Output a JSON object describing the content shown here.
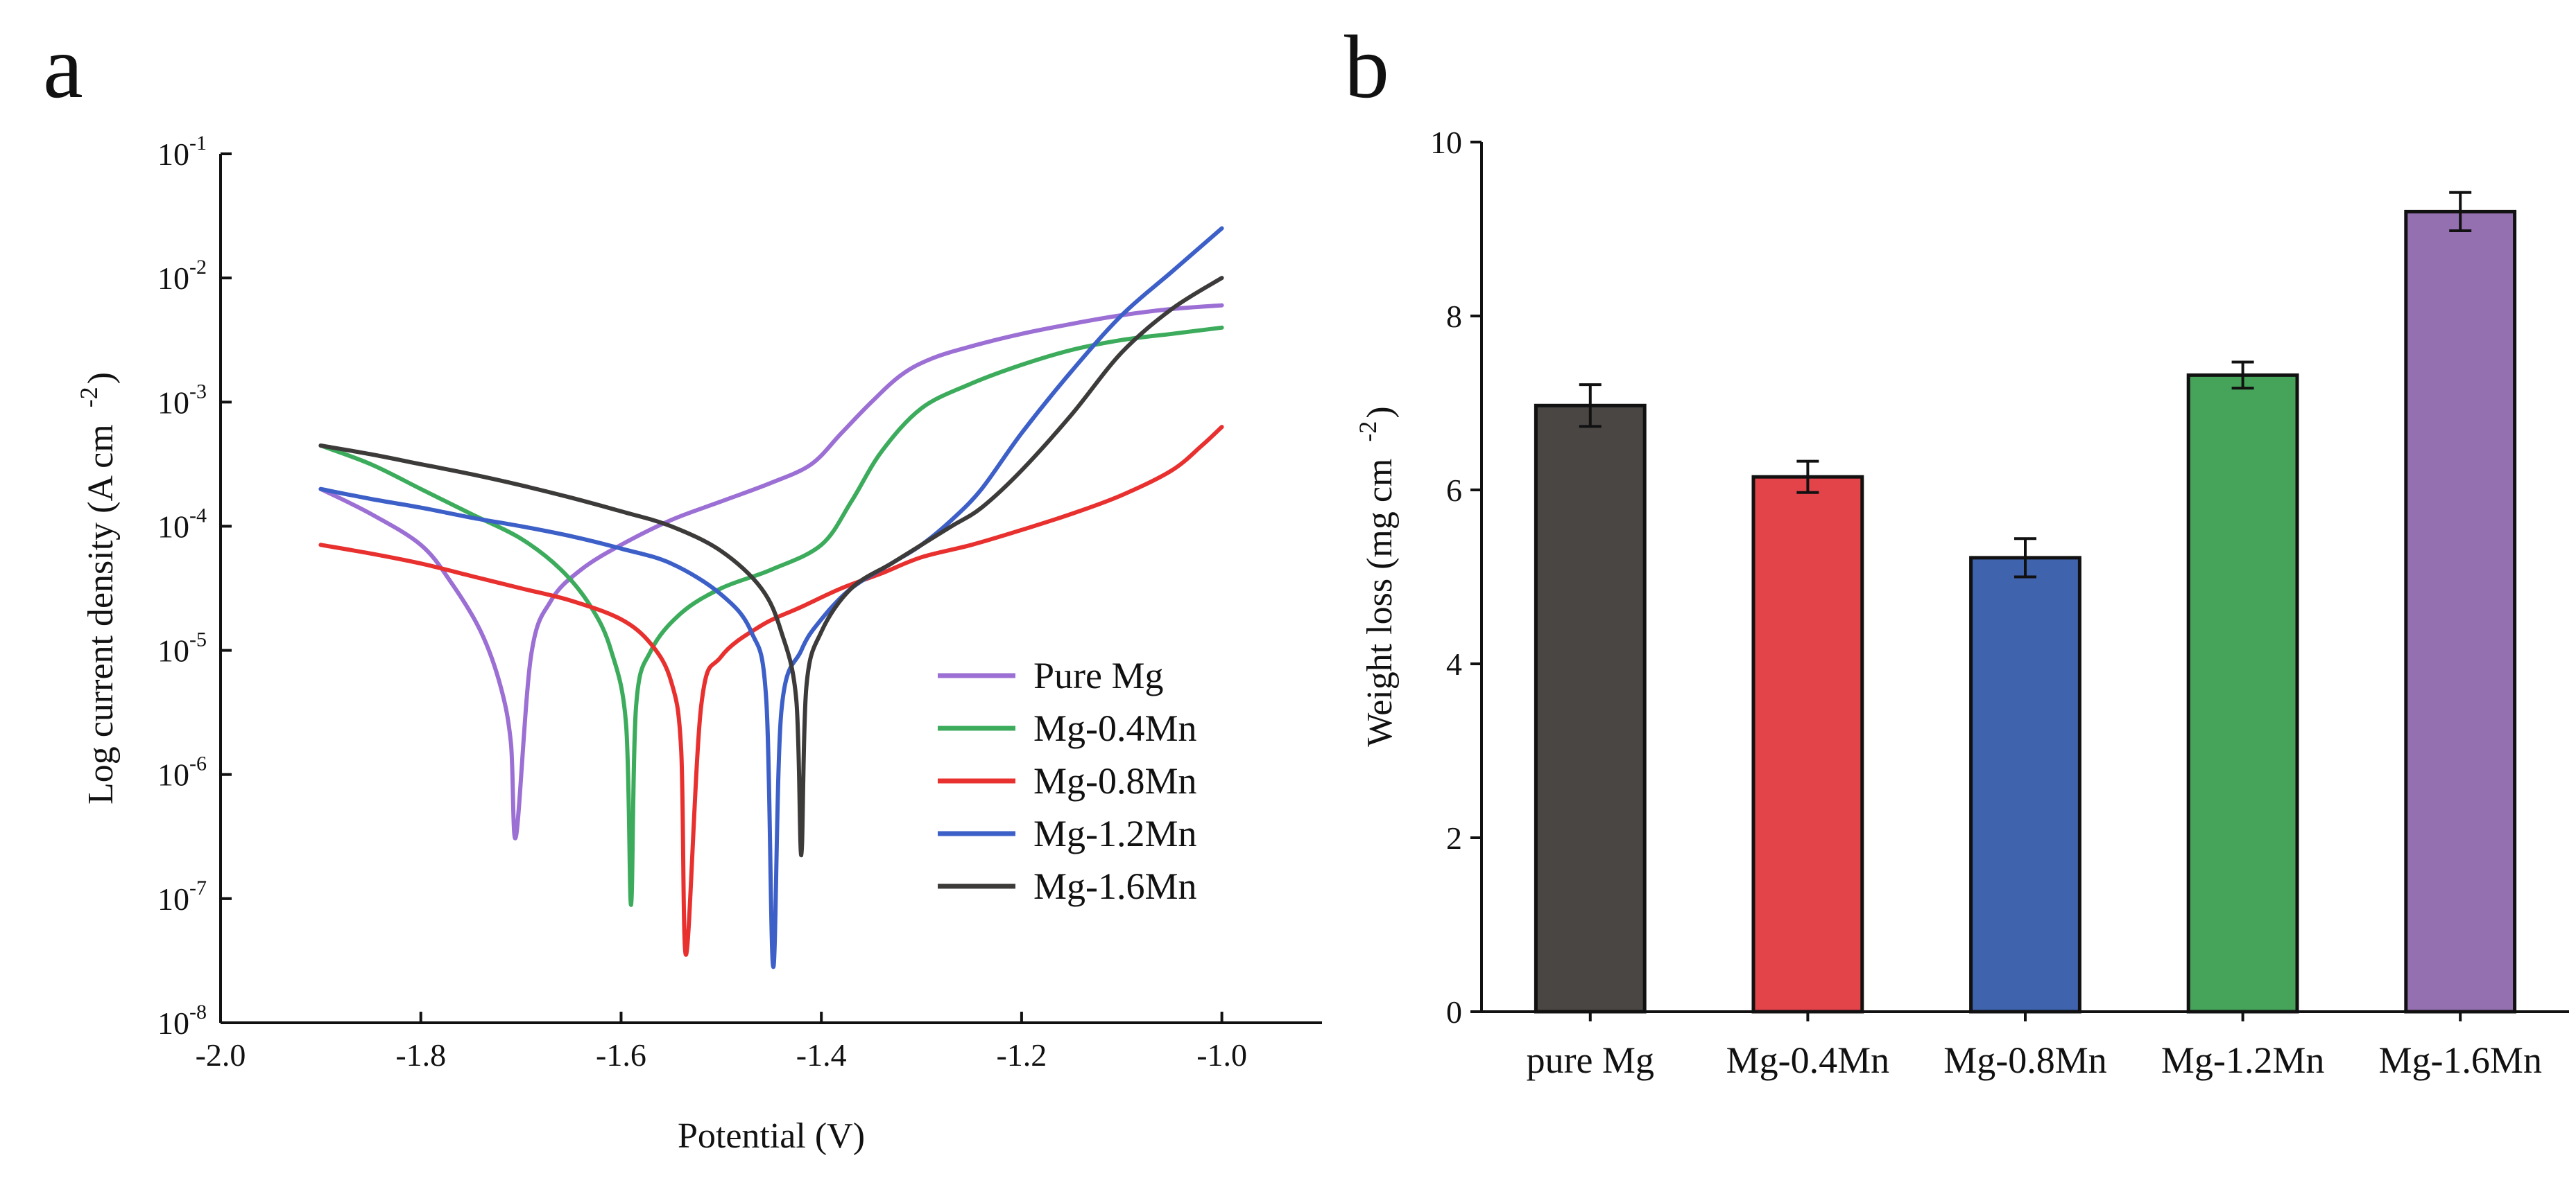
{
  "chart_data": [
    {
      "panel": "a",
      "type": "line",
      "xlabel": "Potential (V)",
      "ylabel": "Log current density (A cm",
      "ylabel_superscript": "-2",
      "ylabel_close": ")",
      "xlim": [
        -2.0,
        -0.9
      ],
      "x_ticks": [
        -2.0,
        -1.8,
        -1.6,
        -1.4,
        -1.2,
        -1.0
      ],
      "x_tick_labels": [
        "-2.0",
        "-1.8",
        "-1.6",
        "-1.4",
        "-1.2",
        "-1.0"
      ],
      "ylog": true,
      "ylim_exp": [
        -8,
        -1
      ],
      "y_tick_exps": [
        -8,
        -7,
        -6,
        -5,
        -4,
        -3,
        -2,
        -1
      ],
      "y_tick_base": "10",
      "y_tick_exp_labels": [
        "-8",
        "-7",
        "-6",
        "-5",
        "-4",
        "-3",
        "-2",
        "-1"
      ],
      "legend_position": "lower-right",
      "series": [
        {
          "name": "Pure Mg",
          "color": "#9b6fd4",
          "x": [
            -1.9,
            -1.85,
            -1.8,
            -1.77,
            -1.74,
            -1.72,
            -1.71,
            -1.705,
            -1.69,
            -1.67,
            -1.64,
            -1.6,
            -1.55,
            -1.5,
            -1.45,
            -1.41,
            -1.38,
            -1.35,
            -1.32,
            -1.29,
            -1.25,
            -1.2,
            -1.15,
            -1.1,
            -1.05,
            -1.0
          ],
          "y_log": [
            -3.7,
            -3.9,
            -4.15,
            -4.45,
            -4.85,
            -5.3,
            -5.75,
            -6.5,
            -5.05,
            -4.6,
            -4.35,
            -4.15,
            -3.95,
            -3.8,
            -3.65,
            -3.5,
            -3.25,
            -3.0,
            -2.78,
            -2.65,
            -2.55,
            -2.45,
            -2.37,
            -2.3,
            -2.25,
            -2.22
          ]
        },
        {
          "name": "Mg-0.4Mn",
          "color": "#3cac5c",
          "x": [
            -1.9,
            -1.85,
            -1.8,
            -1.75,
            -1.7,
            -1.66,
            -1.63,
            -1.61,
            -1.595,
            -1.59,
            -1.585,
            -1.57,
            -1.54,
            -1.5,
            -1.45,
            -1.4,
            -1.37,
            -1.34,
            -1.3,
            -1.25,
            -1.2,
            -1.15,
            -1.1,
            -1.05,
            -1.0
          ],
          "y_log": [
            -3.35,
            -3.5,
            -3.7,
            -3.9,
            -4.1,
            -4.35,
            -4.65,
            -5.0,
            -5.6,
            -7.05,
            -5.45,
            -5.0,
            -4.7,
            -4.5,
            -4.35,
            -4.15,
            -3.8,
            -3.4,
            -3.05,
            -2.85,
            -2.7,
            -2.58,
            -2.5,
            -2.45,
            -2.4
          ]
        },
        {
          "name": "Mg-0.8Mn",
          "color": "#e8302f",
          "x": [
            -1.9,
            -1.85,
            -1.8,
            -1.75,
            -1.7,
            -1.65,
            -1.6,
            -1.57,
            -1.55,
            -1.54,
            -1.535,
            -1.52,
            -1.5,
            -1.46,
            -1.42,
            -1.38,
            -1.34,
            -1.3,
            -1.25,
            -1.2,
            -1.15,
            -1.1,
            -1.05,
            -1.02,
            -1.0
          ],
          "y_log": [
            -4.15,
            -4.22,
            -4.3,
            -4.4,
            -4.5,
            -4.6,
            -4.75,
            -4.95,
            -5.25,
            -5.8,
            -7.45,
            -5.45,
            -5.05,
            -4.8,
            -4.65,
            -4.5,
            -4.38,
            -4.25,
            -4.15,
            -4.03,
            -3.9,
            -3.75,
            -3.55,
            -3.35,
            -3.2
          ]
        },
        {
          "name": "Mg-1.2Mn",
          "color": "#3c5fc8",
          "x": [
            -1.9,
            -1.85,
            -1.8,
            -1.75,
            -1.7,
            -1.65,
            -1.6,
            -1.55,
            -1.5,
            -1.47,
            -1.455,
            -1.448,
            -1.44,
            -1.42,
            -1.4,
            -1.37,
            -1.33,
            -1.3,
            -1.27,
            -1.24,
            -1.2,
            -1.15,
            -1.1,
            -1.05,
            -1.0
          ],
          "y_log": [
            -3.7,
            -3.78,
            -3.85,
            -3.93,
            -4.0,
            -4.08,
            -4.18,
            -4.3,
            -4.55,
            -4.85,
            -5.4,
            -7.55,
            -5.5,
            -5.0,
            -4.75,
            -4.5,
            -4.3,
            -4.15,
            -3.95,
            -3.7,
            -3.25,
            -2.75,
            -2.3,
            -1.95,
            -1.6
          ]
        },
        {
          "name": "Mg-1.6Mn",
          "color": "#3d3a3a",
          "x": [
            -1.9,
            -1.85,
            -1.8,
            -1.75,
            -1.7,
            -1.65,
            -1.6,
            -1.55,
            -1.5,
            -1.46,
            -1.44,
            -1.425,
            -1.42,
            -1.415,
            -1.4,
            -1.37,
            -1.33,
            -1.3,
            -1.27,
            -1.24,
            -1.2,
            -1.15,
            -1.1,
            -1.05,
            -1.0
          ],
          "y_log": [
            -3.35,
            -3.42,
            -3.5,
            -3.58,
            -3.67,
            -3.77,
            -3.88,
            -4.0,
            -4.2,
            -4.5,
            -4.85,
            -5.4,
            -6.65,
            -5.3,
            -4.85,
            -4.5,
            -4.3,
            -4.15,
            -4.0,
            -3.85,
            -3.55,
            -3.1,
            -2.6,
            -2.25,
            -2.0
          ]
        }
      ]
    },
    {
      "panel": "b",
      "type": "bar",
      "xlabel": "",
      "ylabel": "Weight loss (mg cm",
      "ylabel_superscript": "-2",
      "ylabel_close": ")",
      "ylim": [
        0,
        10
      ],
      "y_ticks": [
        0,
        2,
        4,
        6,
        8,
        10
      ],
      "y_tick_labels": [
        "0",
        "2",
        "4",
        "6",
        "8",
        "10"
      ],
      "categories": [
        "pure Mg",
        "Mg-0.4Mn",
        "Mg-0.8Mn",
        "Mg-1.2Mn",
        "Mg-1.6Mn"
      ],
      "values": [
        6.97,
        6.15,
        5.22,
        7.32,
        9.2
      ],
      "errors": [
        0.24,
        0.18,
        0.22,
        0.15,
        0.22
      ],
      "colors": [
        "#4a4644",
        "#e3444a",
        "#3f63ac",
        "#46a35a",
        "#9470b0"
      ]
    }
  ]
}
